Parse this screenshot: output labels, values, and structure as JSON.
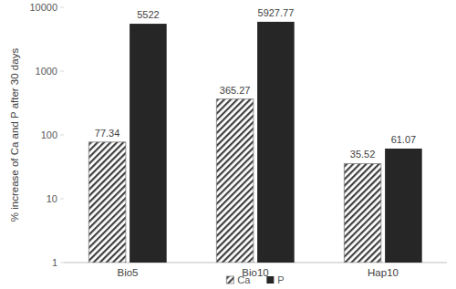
{
  "chart_data": {
    "type": "bar",
    "ylabel": "% increase of Ca and P after 30 days",
    "categories": [
      "Bio5",
      "Bio10",
      "Hap10"
    ],
    "series": [
      {
        "name": "Ca",
        "color": "#404040",
        "values": [
          77.34,
          365.27,
          35.52
        ]
      },
      {
        "name": "P",
        "color": "#262626",
        "values": [
          5522,
          5927.77,
          61.07
        ]
      }
    ],
    "ylim": [
      1,
      10000
    ],
    "yticks": [
      1,
      10,
      100,
      1000,
      10000
    ],
    "log": "y",
    "grid": false,
    "legend": "bottom",
    "data_labels": true
  }
}
